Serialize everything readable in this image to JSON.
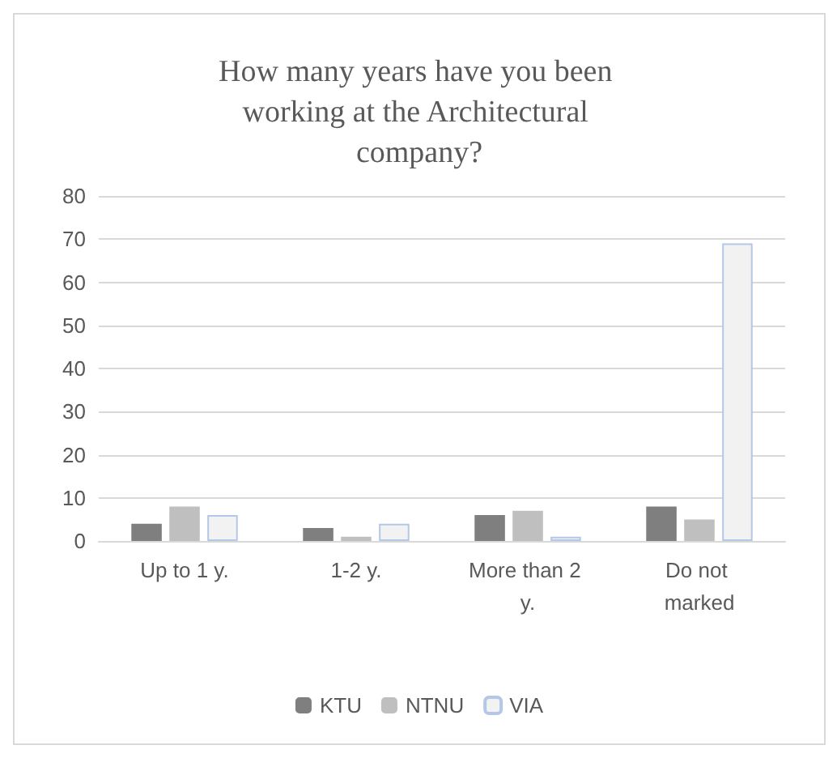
{
  "chart_data": {
    "type": "bar",
    "title": "How many years have you been working at the Architectural company?",
    "categories": [
      "Up to 1 y.",
      "1-2 y.",
      "More than 2 y.",
      "Do not marked"
    ],
    "series": [
      {
        "name": "KTU",
        "color": "#7f7f7f",
        "values": [
          4,
          3,
          6,
          8
        ]
      },
      {
        "name": "NTNU",
        "color": "#bfbfbf",
        "values": [
          8,
          1,
          7,
          5
        ]
      },
      {
        "name": "VIA",
        "color": "#f2f2f2",
        "values": [
          6,
          4,
          1,
          69
        ]
      }
    ],
    "ylim": [
      0,
      80
    ],
    "yticks": [
      0,
      10,
      20,
      30,
      40,
      50,
      60,
      70,
      80
    ],
    "grid": "y",
    "legend": "bottom"
  }
}
